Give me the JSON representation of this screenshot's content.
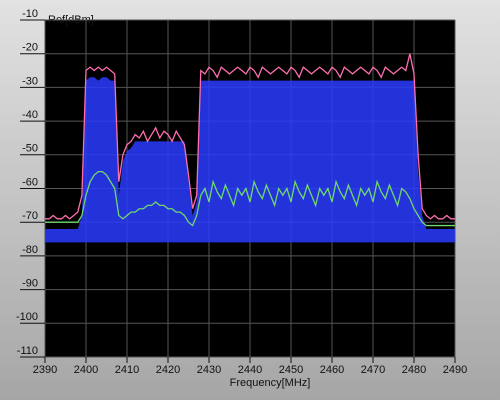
{
  "chart_data": {
    "type": "line",
    "xlabel": "Frequency[MHz]",
    "ylabel": "Ref[dBm]",
    "x": [
      2390,
      2391,
      2392,
      2393,
      2394,
      2395,
      2396,
      2397,
      2398,
      2399,
      2400,
      2401,
      2402,
      2403,
      2404,
      2405,
      2406,
      2407,
      2408,
      2409,
      2410,
      2411,
      2412,
      2413,
      2414,
      2415,
      2416,
      2417,
      2418,
      2419,
      2420,
      2421,
      2422,
      2423,
      2424,
      2425,
      2426,
      2427,
      2428,
      2429,
      2430,
      2431,
      2432,
      2433,
      2434,
      2435,
      2436,
      2437,
      2438,
      2439,
      2440,
      2441,
      2442,
      2443,
      2444,
      2445,
      2446,
      2447,
      2448,
      2449,
      2450,
      2451,
      2452,
      2453,
      2454,
      2455,
      2456,
      2457,
      2458,
      2459,
      2460,
      2461,
      2462,
      2463,
      2464,
      2465,
      2466,
      2467,
      2468,
      2469,
      2470,
      2471,
      2472,
      2473,
      2474,
      2475,
      2476,
      2477,
      2478,
      2479,
      2480,
      2481,
      2482,
      2483,
      2484,
      2485,
      2486,
      2487,
      2488,
      2489,
      2490
    ],
    "series": [
      {
        "color": "#2a3cff",
        "fill_between": 1,
        "values": [
          -72,
          -72,
          -72,
          -72,
          -72,
          -72,
          -72,
          -72,
          -72,
          -68,
          -28,
          -27,
          -27,
          -28,
          -27,
          -27,
          -28,
          -28,
          -62,
          -52,
          -49,
          -48,
          -46,
          -46,
          -46,
          -46,
          -46,
          -46,
          -46,
          -46,
          -46,
          -46,
          -46,
          -46,
          -46,
          -58,
          -68,
          -64,
          -28,
          -28,
          -28,
          -28,
          -28,
          -28,
          -28,
          -28,
          -28,
          -28,
          -28,
          -28,
          -28,
          -28,
          -28,
          -28,
          -28,
          -28,
          -28,
          -28,
          -28,
          -28,
          -28,
          -28,
          -28,
          -28,
          -28,
          -28,
          -28,
          -28,
          -28,
          -28,
          -28,
          -28,
          -28,
          -28,
          -28,
          -28,
          -28,
          -28,
          -28,
          -28,
          -28,
          -28,
          -28,
          -28,
          -28,
          -28,
          -28,
          -28,
          -28,
          -28,
          -28,
          -55,
          -68,
          -72,
          -72,
          -72,
          -72,
          -72,
          -72,
          -72,
          -72
        ]
      },
      {
        "color": "#2a3cff",
        "values": [
          -76,
          -76,
          -76,
          -76,
          -76,
          -76,
          -76,
          -76,
          -76,
          -76,
          -76,
          -76,
          -76,
          -76,
          -76,
          -76,
          -76,
          -76,
          -76,
          -76,
          -76,
          -76,
          -76,
          -76,
          -76,
          -76,
          -76,
          -76,
          -76,
          -76,
          -76,
          -76,
          -76,
          -76,
          -76,
          -76,
          -76,
          -76,
          -76,
          -76,
          -76,
          -76,
          -76,
          -76,
          -76,
          -76,
          -76,
          -76,
          -76,
          -76,
          -76,
          -76,
          -76,
          -76,
          -76,
          -76,
          -76,
          -76,
          -76,
          -76,
          -76,
          -76,
          -76,
          -76,
          -76,
          -76,
          -76,
          -76,
          -76,
          -76,
          -76,
          -76,
          -76,
          -76,
          -76,
          -76,
          -76,
          -76,
          -76,
          -76,
          -76,
          -76,
          -76,
          -76,
          -76,
          -76,
          -76,
          -76,
          -76,
          -76,
          -76,
          -76,
          -76,
          -76,
          -76,
          -76,
          -76,
          -76,
          -76,
          -76,
          -76
        ]
      },
      {
        "color": "#ff6fb0",
        "values": [
          -69,
          -69,
          -68,
          -69,
          -69,
          -68,
          -69,
          -68,
          -67,
          -62,
          -25,
          -24,
          -25,
          -24,
          -25,
          -24,
          -25,
          -26,
          -58,
          -50,
          -47,
          -46,
          -44,
          -45,
          -43,
          -46,
          -44,
          -42,
          -45,
          -43,
          -44,
          -46,
          -43,
          -45,
          -47,
          -56,
          -66,
          -62,
          -25,
          -26,
          -24,
          -25,
          -27,
          -24,
          -25,
          -26,
          -25,
          -24,
          -25,
          -26,
          -24,
          -25,
          -27,
          -24,
          -25,
          -26,
          -25,
          -24,
          -25,
          -26,
          -24,
          -25,
          -27,
          -24,
          -25,
          -26,
          -25,
          -24,
          -25,
          -26,
          -24,
          -25,
          -27,
          -24,
          -25,
          -26,
          -25,
          -24,
          -25,
          -26,
          -24,
          -25,
          -27,
          -24,
          -25,
          -26,
          -25,
          -24,
          -25,
          -20,
          -26,
          -50,
          -66,
          -68,
          -69,
          -68,
          -69,
          -69,
          -68,
          -69,
          -69
        ]
      },
      {
        "color": "#6fd86f",
        "values": [
          -70,
          -70,
          -70,
          -70,
          -70,
          -70,
          -70,
          -70,
          -70,
          -68,
          -62,
          -58,
          -56,
          -55,
          -55,
          -56,
          -58,
          -60,
          -68,
          -69,
          -68,
          -67,
          -67,
          -66,
          -66,
          -65,
          -65,
          -64,
          -65,
          -65,
          -66,
          -66,
          -67,
          -67,
          -68,
          -70,
          -71,
          -68,
          -62,
          -60,
          -64,
          -58,
          -61,
          -63,
          -59,
          -62,
          -65,
          -60,
          -62,
          -60,
          -64,
          -58,
          -61,
          -63,
          -59,
          -62,
          -65,
          -60,
          -62,
          -60,
          -64,
          -58,
          -61,
          -63,
          -59,
          -62,
          -65,
          -60,
          -62,
          -60,
          -64,
          -58,
          -61,
          -63,
          -59,
          -62,
          -65,
          -60,
          -62,
          -60,
          -64,
          -58,
          -61,
          -63,
          -59,
          -62,
          -65,
          -60,
          -61,
          -63,
          -66,
          -68,
          -70,
          -71,
          -71,
          -71,
          -71,
          -71,
          -71,
          -71,
          -71
        ]
      }
    ],
    "xlim": [
      2390,
      2490
    ],
    "xticks": [
      2390,
      2400,
      2410,
      2420,
      2430,
      2440,
      2450,
      2460,
      2470,
      2480,
      2490
    ],
    "ylim": [
      -110,
      -10
    ],
    "yticks": [
      -10,
      -20,
      -30,
      -40,
      -50,
      -60,
      -70,
      -80,
      -90,
      -100,
      -110
    ],
    "grid": true
  }
}
